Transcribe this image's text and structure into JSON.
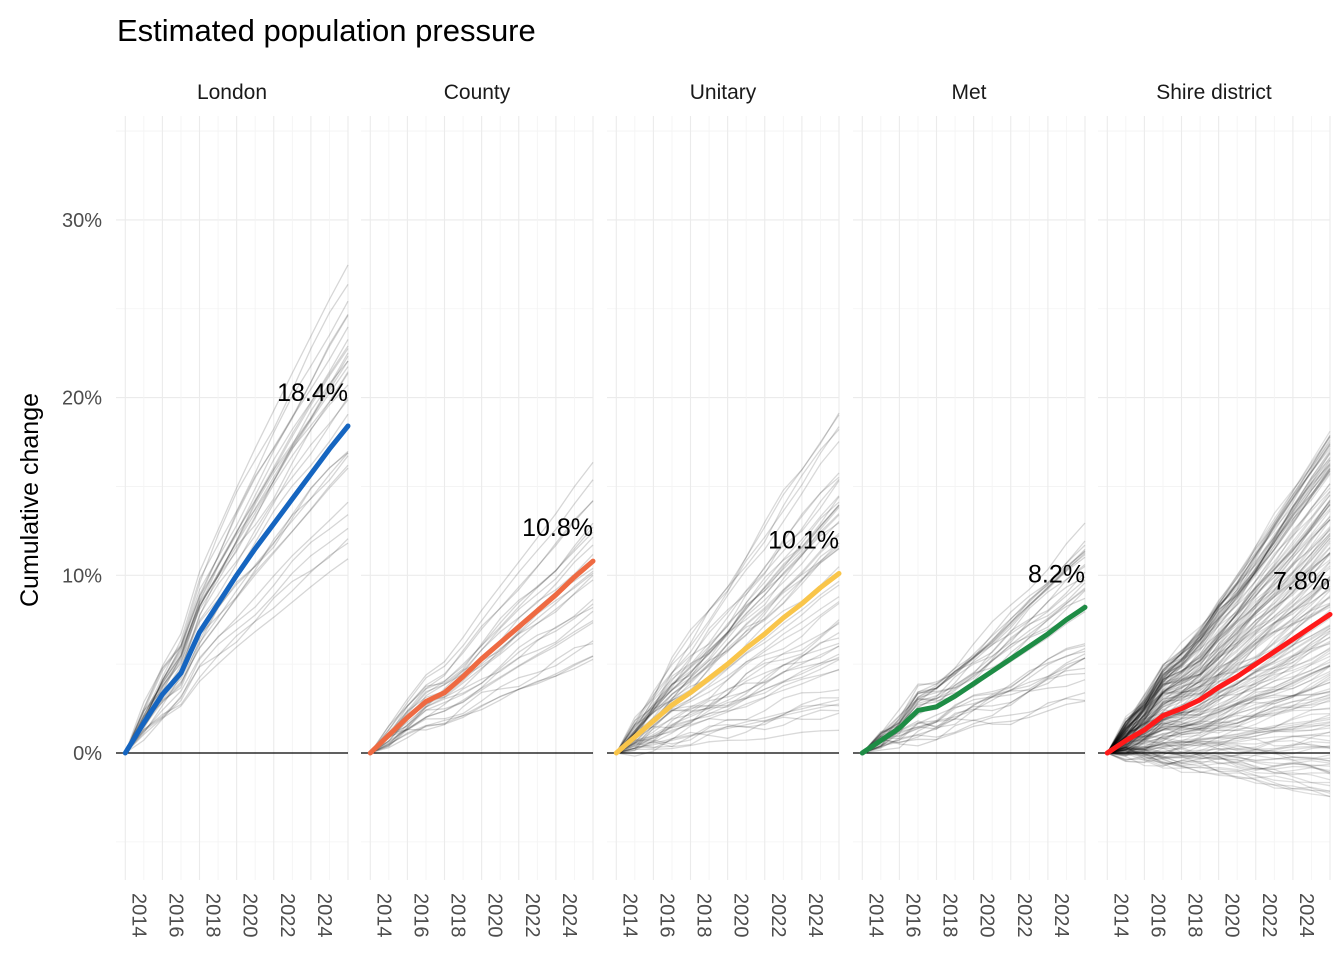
{
  "chart_data": {
    "type": "line",
    "title": "Estimated population pressure",
    "ylabel": "Cumulative change",
    "xlabel": "",
    "x_ticks": [
      2014,
      2016,
      2018,
      2020,
      2022,
      2024
    ],
    "x_range": [
      2013.5,
      2026
    ],
    "y_ticks": [
      0,
      0.1,
      0.2,
      0.3
    ],
    "y_tick_labels": [
      "0%",
      "10%",
      "20%",
      "30%"
    ],
    "y_range": [
      -0.07,
      0.355
    ],
    "grid": true,
    "background_lines_color": "#000000",
    "panels": [
      {
        "name": "London",
        "color": "#1565C0",
        "end_label": "18.4%",
        "average": {
          "x": [
            2014,
            2015,
            2016,
            2017,
            2018,
            2019,
            2020,
            2021,
            2022,
            2023,
            2024,
            2025,
            2026
          ],
          "y": [
            0,
            0.017,
            0.033,
            0.045,
            0.068,
            0.084,
            0.1,
            0.115,
            0.129,
            0.143,
            0.157,
            0.171,
            0.184
          ]
        }
      },
      {
        "name": "County",
        "color": "#EE6A42",
        "end_label": "10.8%",
        "average": {
          "x": [
            2014,
            2015,
            2016,
            2017,
            2018,
            2019,
            2020,
            2021,
            2022,
            2023,
            2024,
            2025,
            2026
          ],
          "y": [
            0,
            0.01,
            0.02,
            0.029,
            0.034,
            0.043,
            0.053,
            0.062,
            0.071,
            0.08,
            0.089,
            0.099,
            0.108
          ]
        }
      },
      {
        "name": "Unitary",
        "color": "#F9C54A",
        "end_label": "10.1%",
        "average": {
          "x": [
            2014,
            2015,
            2016,
            2017,
            2018,
            2019,
            2020,
            2021,
            2022,
            2023,
            2024,
            2025,
            2026
          ],
          "y": [
            0,
            0.009,
            0.018,
            0.027,
            0.034,
            0.042,
            0.05,
            0.059,
            0.067,
            0.076,
            0.084,
            0.093,
            0.101
          ]
        }
      },
      {
        "name": "Met",
        "color": "#1E8C45",
        "end_label": "8.2%",
        "average": {
          "x": [
            2014,
            2015,
            2016,
            2017,
            2018,
            2019,
            2020,
            2021,
            2022,
            2023,
            2024,
            2025,
            2026
          ],
          "y": [
            0,
            0.007,
            0.014,
            0.024,
            0.026,
            0.032,
            0.039,
            0.046,
            0.053,
            0.06,
            0.067,
            0.075,
            0.082
          ]
        }
      },
      {
        "name": "Shire district",
        "color": "#FF1A1A",
        "end_label": "7.8%",
        "average": {
          "x": [
            2014,
            2015,
            2016,
            2017,
            2018,
            2019,
            2020,
            2021,
            2022,
            2023,
            2024,
            2025,
            2026
          ],
          "y": [
            0,
            0.007,
            0.013,
            0.021,
            0.025,
            0.03,
            0.037,
            0.043,
            0.05,
            0.057,
            0.064,
            0.071,
            0.078
          ]
        }
      }
    ]
  }
}
